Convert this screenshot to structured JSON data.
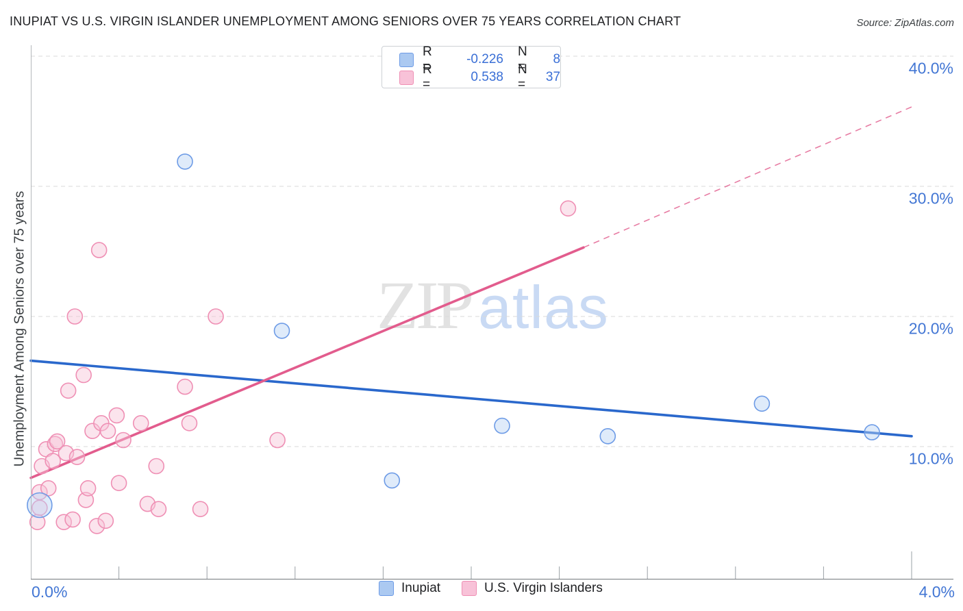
{
  "title": "INUPIAT VS U.S. VIRGIN ISLANDER UNEMPLOYMENT AMONG SENIORS OVER 75 YEARS CORRELATION CHART",
  "source": "Source: ZipAtlas.com",
  "watermark": {
    "zip": "ZIP",
    "atlas": "atlas"
  },
  "legend_box": {
    "rows": [
      {
        "series": "Inupiat",
        "r_label": "R =",
        "r_value": "-0.226",
        "n_label": "N =",
        "n_value": "8"
      },
      {
        "series": "U.S. Virgin Islanders",
        "r_label": "R =",
        "r_value": "0.538",
        "n_label": "N =",
        "n_value": "37"
      }
    ]
  },
  "bottom_legend": {
    "inupiat_label": "Inupiat",
    "virgin_islanders_label": "U.S. Virgin Islanders"
  },
  "colors": {
    "blue_accent": "#3a6fd6",
    "blue_point_fill": "#b7d3f3",
    "blue_point_stroke": "#6d9be6",
    "blue_trend": "#2a68cc",
    "pink_point_fill": "#f6c3d8",
    "pink_point_stroke": "#ef8fb4",
    "pink_trend": "#e25c8d",
    "gridline": "#d9d9d9",
    "tick": "#9aa0a6"
  },
  "chart_data": {
    "type": "scatter",
    "title": "INUPIAT VS U.S. VIRGIN ISLANDER UNEMPLOYMENT AMONG SENIORS OVER 75 YEARS CORRELATION CHART",
    "xlabel": "",
    "ylabel": "Unemployment Among Seniors over 75 years",
    "xlim": [
      0,
      4.19
    ],
    "ylim": [
      0,
      40.8
    ],
    "grid": true,
    "legend_position": "bottom",
    "x_axis": {
      "min_label": "0.0%",
      "max_label": "4.0%",
      "minor_ticks": [
        0.4,
        0.8,
        1.2,
        1.6,
        2.0,
        2.4,
        2.8,
        3.2,
        3.6
      ],
      "major_tick": 4.0
    },
    "y_gridlines": [
      {
        "value": 40,
        "label": "40.0%"
      },
      {
        "value": 30,
        "label": "30.0%"
      },
      {
        "value": 20,
        "label": "20.0%"
      },
      {
        "value": 10,
        "label": "10.0%"
      }
    ],
    "series": [
      {
        "id": "virgin_islanders",
        "name": "U.S. Virgin Islanders",
        "R": 0.538,
        "N": 37,
        "trend": {
          "x1": 0,
          "y1": 7.6,
          "x2": 2.51,
          "y2": 25.3,
          "dashed_extension": {
            "x2": 4.0,
            "y2": 36.1
          }
        },
        "points": [
          {
            "x": 0.03,
            "y": 4.2
          },
          {
            "x": 0.04,
            "y": 5.3
          },
          {
            "x": 0.04,
            "y": 6.5
          },
          {
            "x": 0.05,
            "y": 8.5
          },
          {
            "x": 0.07,
            "y": 9.8
          },
          {
            "x": 0.08,
            "y": 6.8
          },
          {
            "x": 0.1,
            "y": 8.9
          },
          {
            "x": 0.11,
            "y": 10.2
          },
          {
            "x": 0.12,
            "y": 10.4
          },
          {
            "x": 0.15,
            "y": 4.2
          },
          {
            "x": 0.16,
            "y": 9.5
          },
          {
            "x": 0.17,
            "y": 14.3
          },
          {
            "x": 0.19,
            "y": 4.4
          },
          {
            "x": 0.2,
            "y": 20.0
          },
          {
            "x": 0.21,
            "y": 9.2
          },
          {
            "x": 0.24,
            "y": 15.5
          },
          {
            "x": 0.25,
            "y": 5.9
          },
          {
            "x": 0.26,
            "y": 6.8
          },
          {
            "x": 0.28,
            "y": 11.2
          },
          {
            "x": 0.3,
            "y": 3.9
          },
          {
            "x": 0.31,
            "y": 25.1
          },
          {
            "x": 0.32,
            "y": 11.8
          },
          {
            "x": 0.34,
            "y": 4.3
          },
          {
            "x": 0.35,
            "y": 11.2
          },
          {
            "x": 0.39,
            "y": 12.4
          },
          {
            "x": 0.4,
            "y": 7.2
          },
          {
            "x": 0.42,
            "y": 10.5
          },
          {
            "x": 0.5,
            "y": 11.8
          },
          {
            "x": 0.53,
            "y": 5.6
          },
          {
            "x": 0.57,
            "y": 8.5
          },
          {
            "x": 0.58,
            "y": 5.2
          },
          {
            "x": 0.7,
            "y": 14.6
          },
          {
            "x": 0.72,
            "y": 11.8
          },
          {
            "x": 0.77,
            "y": 5.2
          },
          {
            "x": 0.84,
            "y": 20.0
          },
          {
            "x": 1.12,
            "y": 10.5
          },
          {
            "x": 2.44,
            "y": 28.3
          }
        ]
      },
      {
        "id": "inupiat",
        "name": "Inupiat",
        "R": -0.226,
        "N": 8,
        "trend": {
          "x1": 0,
          "y1": 16.6,
          "x2": 4.0,
          "y2": 10.8,
          "dashed_extension": null
        },
        "points": [
          {
            "x": 0.04,
            "y": 5.5,
            "r": 18
          },
          {
            "x": 0.7,
            "y": 31.9
          },
          {
            "x": 1.14,
            "y": 18.9
          },
          {
            "x": 1.64,
            "y": 7.4
          },
          {
            "x": 2.14,
            "y": 11.6
          },
          {
            "x": 2.62,
            "y": 10.8
          },
          {
            "x": 3.32,
            "y": 13.3
          },
          {
            "x": 3.82,
            "y": 11.1
          }
        ]
      }
    ]
  }
}
